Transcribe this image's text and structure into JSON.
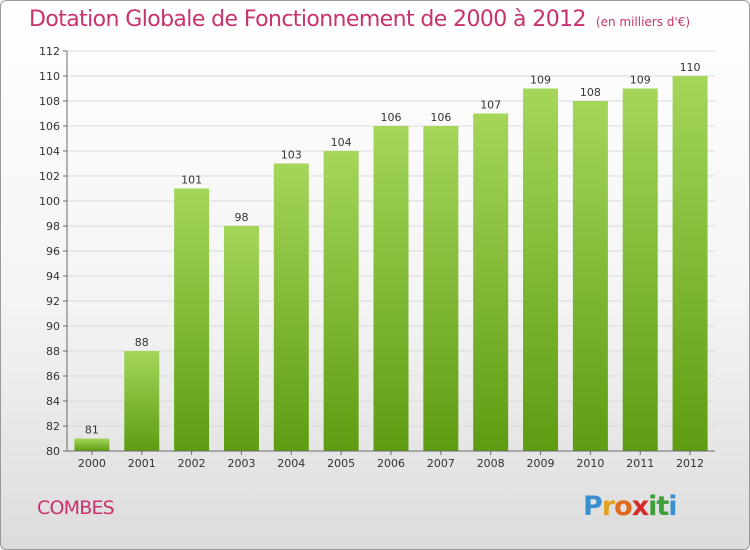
{
  "header": {
    "title": "Dotation Globale de Fonctionnement de 2000 à 2012",
    "subtitle": "(en milliers d'€)"
  },
  "footer": {
    "commune": "COMBES",
    "logo_letters": [
      "P",
      "r",
      "o",
      "x",
      "i",
      "t",
      "i"
    ],
    "logo_colors": [
      "#3a8fd0",
      "#e0a224",
      "#e26a1e",
      "#d62a2a",
      "#3d9e3a",
      "#3d9e3a",
      "#3a8fd0"
    ]
  },
  "colors": {
    "bar_top": "#a5d65a",
    "bar_bottom": "#5e9c12",
    "grid": "#dadada",
    "axis": "#6a6a6a",
    "text": "#333333",
    "accent": "#c8326e"
  },
  "chart_data": {
    "type": "bar",
    "title": "Dotation Globale de Fonctionnement de 2000 à 2012",
    "subtitle": "(en milliers d'€)",
    "categories": [
      "2000",
      "2001",
      "2002",
      "2003",
      "2004",
      "2005",
      "2006",
      "2007",
      "2008",
      "2009",
      "2010",
      "2011",
      "2012"
    ],
    "values": [
      81,
      88,
      101,
      98,
      103,
      104,
      106,
      106,
      107,
      109,
      108,
      109,
      110
    ],
    "data_labels": [
      "81",
      "88",
      "101",
      "98",
      "103",
      "104",
      "106",
      "106",
      "107",
      "109",
      "108",
      "109",
      "110"
    ],
    "ylim": [
      80,
      112
    ],
    "yticks": [
      80,
      82,
      84,
      86,
      88,
      90,
      92,
      94,
      96,
      98,
      100,
      102,
      104,
      106,
      108,
      110,
      112
    ],
    "grid": true,
    "legend": "none"
  }
}
